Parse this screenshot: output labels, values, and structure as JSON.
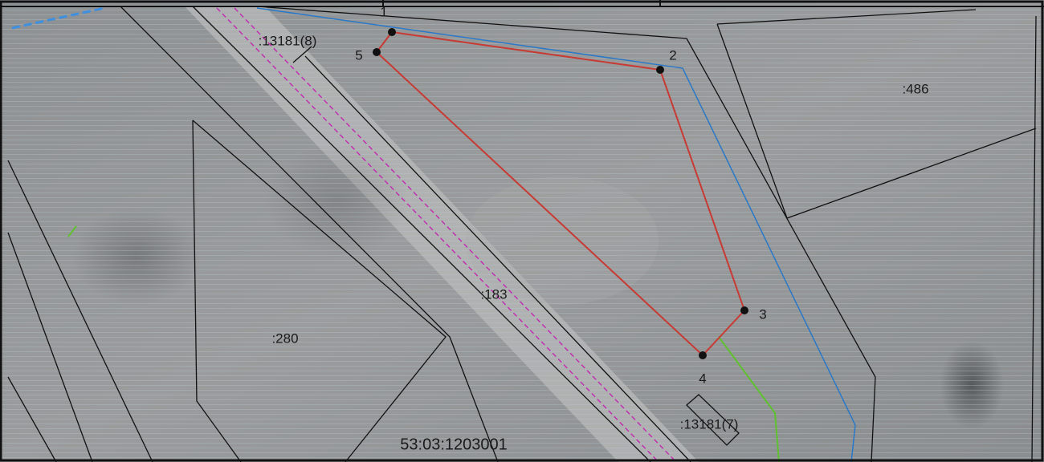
{
  "map": {
    "labels": {
      "parcel_13181_8": ":13181(8)",
      "parcel_486": ":486",
      "parcel_183": ":183",
      "parcel_280": ":280",
      "parcel_13181_7": ":13181(7)",
      "quarter": "53:03:1203001"
    },
    "points": [
      "1",
      "2",
      "3",
      "4",
      "5"
    ]
  }
}
